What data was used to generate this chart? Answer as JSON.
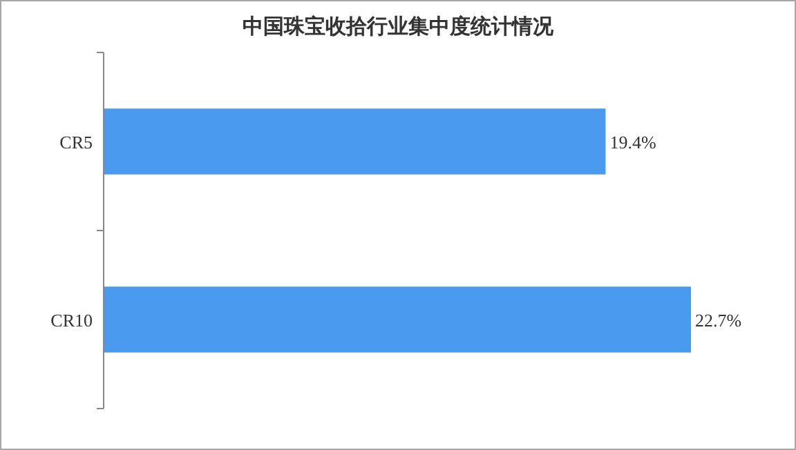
{
  "chart_data": {
    "type": "bar",
    "orientation": "horizontal",
    "title": "中国珠宝收拾行业集中度统计情况",
    "categories": [
      "CR5",
      "CR10"
    ],
    "values": [
      19.4,
      22.7
    ],
    "value_labels": [
      "19.4%",
      "22.7%"
    ],
    "color": "#4a9bef"
  }
}
